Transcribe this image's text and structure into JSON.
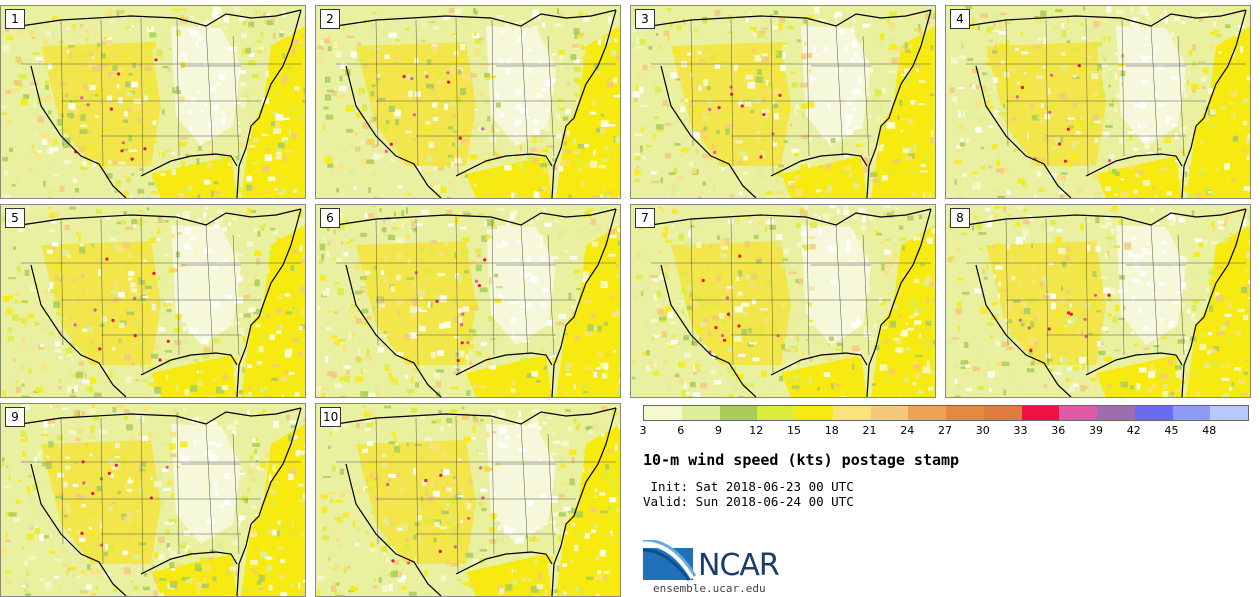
{
  "panels": [
    {
      "label": "1"
    },
    {
      "label": "2"
    },
    {
      "label": "3"
    },
    {
      "label": "4"
    },
    {
      "label": "5"
    },
    {
      "label": "6"
    },
    {
      "label": "7"
    },
    {
      "label": "8"
    },
    {
      "label": "9"
    },
    {
      "label": "10"
    }
  ],
  "legend": {
    "ticks": [
      "3",
      "6",
      "9",
      "12",
      "15",
      "18",
      "21",
      "24",
      "27",
      "30",
      "33",
      "36",
      "39",
      "42",
      "45",
      "48"
    ],
    "colors": [
      "#f6f8cd",
      "#ddee9a",
      "#a8cc5a",
      "#dcec3c",
      "#f7ea10",
      "#fbe27a",
      "#f4c97c",
      "#eca453",
      "#e48a3e",
      "#dd7b40",
      "#ee1146",
      "#df5aa4",
      "#9f6cb0",
      "#6b6bf0",
      "#8c9cf5",
      "#b8c8fa"
    ]
  },
  "title": "10-m wind speed (kts) postage stamp",
  "init": " Init: Sat 2018-06-23 00 UTC",
  "valid": "Valid: Sun 2018-06-24 00 UTC",
  "logo": {
    "text": "NCAR",
    "url": "ensemble.ucar.edu"
  }
}
